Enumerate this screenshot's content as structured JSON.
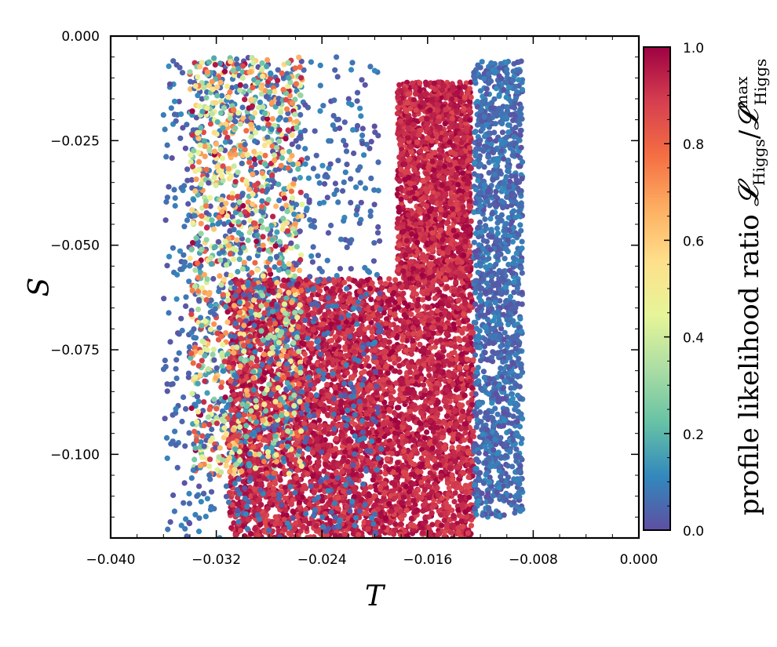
{
  "chart_data": {
    "type": "scatter",
    "xlabel": "T",
    "ylabel": "S",
    "xlim": [
      -0.04,
      0.0
    ],
    "ylim": [
      -0.12,
      0.0
    ],
    "xticks": [
      -0.04,
      -0.032,
      -0.024,
      -0.016,
      -0.008,
      0.0
    ],
    "xtick_labels": [
      "−0.040",
      "−0.032",
      "−0.024",
      "−0.016",
      "−0.008",
      "0.000"
    ],
    "yticks": [
      0.0,
      -0.025,
      -0.05,
      -0.075,
      -0.1
    ],
    "ytick_labels": [
      "0.000",
      "−0.025",
      "−0.050",
      "−0.075",
      "−0.100"
    ],
    "grid": false,
    "colorbar": {
      "label": "profile likelihood ratio",
      "label_math": "L_Higgs / L_Higgs^max",
      "colormap": "Spectral_r",
      "range": [
        0.0,
        1.0
      ],
      "ticks": [
        0.0,
        0.2,
        0.4,
        0.6,
        0.8,
        1.0
      ],
      "tick_labels": [
        "0.0",
        "0.2",
        "0.4",
        "0.6",
        "0.8",
        "1.0"
      ],
      "colors": [
        "#5e4fa2",
        "#3288bd",
        "#66c2a5",
        "#abdda4",
        "#e6f598",
        "#fee08b",
        "#fdae61",
        "#f46d43",
        "#d53e4f",
        "#9e0142"
      ]
    },
    "regions": [
      {
        "description": "high-likelihood core",
        "level": 0.98,
        "T_range": [
          -0.031,
          -0.0125
        ],
        "S_range": [
          -0.12,
          -0.058
        ]
      },
      {
        "description": "high-likelihood vertical band",
        "level": 0.98,
        "T_range": [
          -0.0183,
          -0.0127
        ],
        "S_range": [
          -0.058,
          -0.011
        ]
      },
      {
        "description": "low-likelihood outer edge",
        "level": 0.03,
        "T_range": [
          -0.0125,
          -0.0088
        ],
        "S_range": [
          -0.115,
          -0.006
        ]
      },
      {
        "description": "low-likelihood left edge",
        "level": 0.03,
        "T_range": [
          -0.036,
          -0.0195
        ],
        "S_range": [
          -0.12,
          -0.005
        ]
      },
      {
        "description": "mixed scattered region",
        "level": 0.5,
        "T_range": [
          -0.034,
          -0.0255
        ],
        "S_range": [
          -0.105,
          -0.005
        ]
      }
    ]
  }
}
